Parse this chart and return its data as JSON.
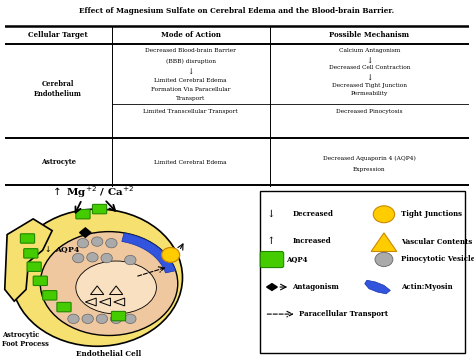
{
  "title": "Effect of Magnesium Sulfate on Cerebral Edema and the Blood-brain Barrier.",
  "table_headers": [
    "Cellular Target",
    "Mode of Action",
    "Possible Mechanism"
  ],
  "row1_col1": "Cerebral\nEndothelium",
  "row2_col2": "Limited Transcellular Transport",
  "row2_col3": "Decreased Pinocytosis",
  "row3_col1": "Astrocyte",
  "row3_col2": "Limited Cerebral Edema",
  "row3_col3": "Decreased Aquaporin 4 (AQP4)\nExpression",
  "bg_color": "#ffffff",
  "astrocyte_color": "#f5e070",
  "cell_color": "#f0c8a0",
  "inner_color": "#f8e0c0",
  "green_aqp4": "#44cc00",
  "green_aqp4_edge": "#228800",
  "blue_actin": "#3355dd",
  "yellow_tj": "#ffcc00",
  "yellow_tj_edge": "#cc8800",
  "gray_vesicle": "#aaaaaa",
  "gray_vesicle_edge": "#666666"
}
